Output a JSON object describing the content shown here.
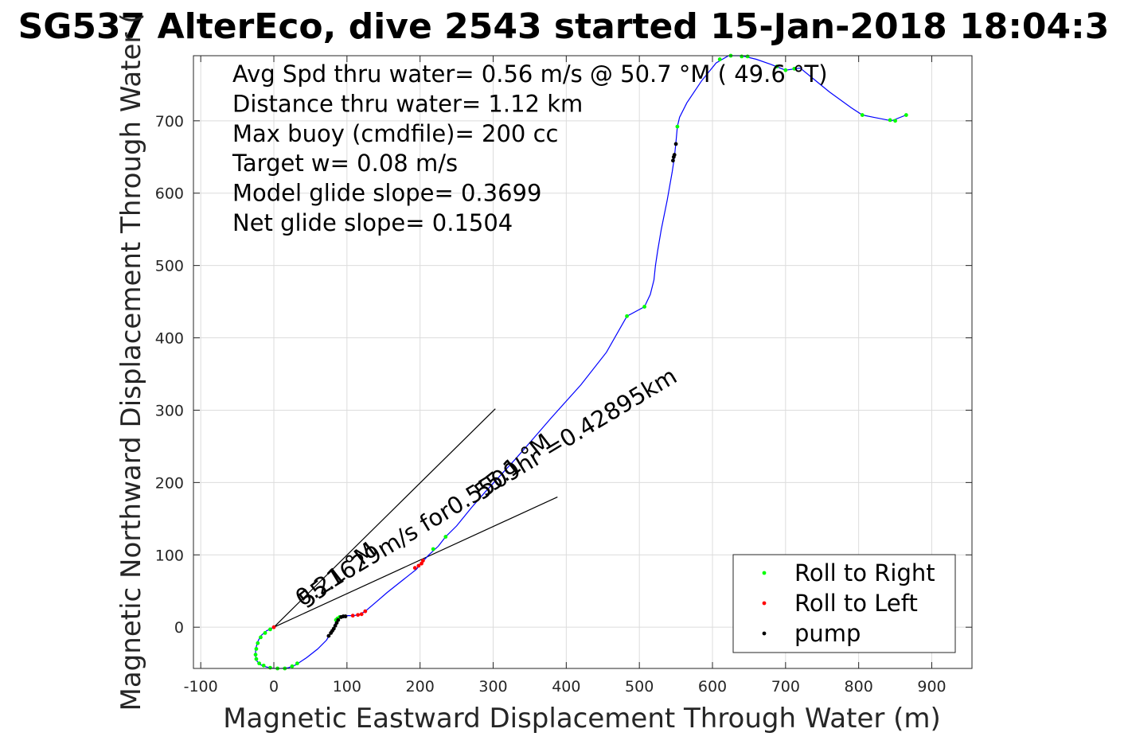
{
  "chart_data": {
    "type": "scatter",
    "title": "SG537 AlterEco, dive 2543 started 15-Jan-2018 18:04:3",
    "xlabel": "Magnetic Eastward Displacement Through Water (m)",
    "ylabel": "Magnetic Northward Displacement Through Water (",
    "xlim": [
      -110,
      955
    ],
    "ylim": [
      -57,
      790
    ],
    "xticks": [
      -100,
      0,
      100,
      200,
      300,
      400,
      500,
      600,
      700,
      800,
      900
    ],
    "yticks": [
      0,
      100,
      200,
      300,
      400,
      500,
      600,
      700
    ],
    "grid": true,
    "stats": [
      "Avg Spd thru water=  0.56 m/s @  50.7 °M ( 49.6 °T)",
      "Distance thru water=  1.12 km",
      "Max buoy (cmdfile)= 200 cc",
      "Target w= 0.08 m/s",
      "Model glide slope= 0.3699",
      "Net glide slope= 0.1504"
    ],
    "track": {
      "name": "",
      "color": "#0000ff",
      "points": [
        [
          0,
          0
        ],
        [
          -10,
          -5
        ],
        [
          -18,
          -12
        ],
        [
          -22,
          -20
        ],
        [
          -25,
          -30
        ],
        [
          -25,
          -40
        ],
        [
          -23,
          -47
        ],
        [
          -18,
          -52
        ],
        [
          -10,
          -55
        ],
        [
          0,
          -57
        ],
        [
          10,
          -57
        ],
        [
          20,
          -56
        ],
        [
          30,
          -52
        ],
        [
          45,
          -42
        ],
        [
          60,
          -30
        ],
        [
          72,
          -18
        ],
        [
          78,
          -8
        ],
        [
          82,
          0
        ],
        [
          85,
          8
        ],
        [
          88,
          13
        ],
        [
          92,
          15
        ],
        [
          100,
          16
        ],
        [
          110,
          16
        ],
        [
          118,
          18
        ],
        [
          125,
          22
        ],
        [
          140,
          35
        ],
        [
          155,
          48
        ],
        [
          170,
          60
        ],
        [
          185,
          72
        ],
        [
          195,
          80
        ],
        [
          203,
          90
        ],
        [
          212,
          100
        ],
        [
          225,
          112
        ],
        [
          235,
          125
        ],
        [
          250,
          140
        ],
        [
          270,
          165
        ],
        [
          290,
          188
        ],
        [
          310,
          210
        ],
        [
          330,
          232
        ],
        [
          350,
          255
        ],
        [
          380,
          290
        ],
        [
          420,
          335
        ],
        [
          455,
          380
        ],
        [
          483,
          430
        ],
        [
          507,
          443
        ],
        [
          515,
          460
        ],
        [
          520,
          480
        ],
        [
          522,
          500
        ],
        [
          525,
          520
        ],
        [
          530,
          550
        ],
        [
          538,
          590
        ],
        [
          545,
          630
        ],
        [
          548,
          650
        ],
        [
          550,
          670
        ],
        [
          552,
          692
        ],
        [
          555,
          705
        ],
        [
          565,
          725
        ],
        [
          585,
          755
        ],
        [
          605,
          780
        ],
        [
          622,
          790
        ],
        [
          640,
          790
        ],
        [
          660,
          785
        ],
        [
          680,
          778
        ],
        [
          700,
          770
        ],
        [
          720,
          773
        ],
        [
          760,
          740
        ],
        [
          790,
          718
        ],
        [
          805,
          708
        ],
        [
          820,
          705
        ],
        [
          845,
          700
        ],
        [
          865,
          708
        ]
      ]
    },
    "series": [
      {
        "name": "Roll to Right",
        "color": "#00ff00",
        "marker": "dot",
        "points": [
          [
            -5,
            -3
          ],
          [
            -12,
            -8
          ],
          [
            -18,
            -14
          ],
          [
            -22,
            -22
          ],
          [
            -24,
            -30
          ],
          [
            -25,
            -38
          ],
          [
            -24,
            -44
          ],
          [
            -20,
            -50
          ],
          [
            -14,
            -53
          ],
          [
            -5,
            -56
          ],
          [
            5,
            -57
          ],
          [
            15,
            -57
          ],
          [
            25,
            -54
          ],
          [
            32,
            -50
          ],
          [
            85,
            10
          ],
          [
            87,
            12
          ],
          [
            90,
            14
          ],
          [
            218,
            108
          ],
          [
            235,
            125
          ],
          [
            483,
            430
          ],
          [
            507,
            443
          ],
          [
            552,
            692
          ],
          [
            610,
            785
          ],
          [
            625,
            790
          ],
          [
            640,
            789
          ],
          [
            648,
            789
          ],
          [
            688,
            775
          ],
          [
            700,
            770
          ],
          [
            712,
            772
          ],
          [
            805,
            708
          ],
          [
            843,
            701
          ],
          [
            850,
            700
          ],
          [
            865,
            708
          ]
        ]
      },
      {
        "name": "Roll to Left",
        "color": "#ff0000",
        "marker": "dot",
        "points": [
          [
            0,
            0
          ],
          [
            108,
            16
          ],
          [
            115,
            17
          ],
          [
            120,
            18
          ],
          [
            125,
            22
          ],
          [
            193,
            82
          ],
          [
            198,
            85
          ],
          [
            202,
            88
          ],
          [
            204,
            92
          ]
        ]
      },
      {
        "name": "pump",
        "color": "#000000",
        "marker": "dot",
        "points": [
          [
            75,
            -12
          ],
          [
            78,
            -8
          ],
          [
            80,
            -5
          ],
          [
            82,
            -2
          ],
          [
            84,
            2
          ],
          [
            86,
            6
          ],
          [
            88,
            10
          ],
          [
            92,
            14
          ],
          [
            95,
            15
          ],
          [
            98,
            15
          ],
          [
            546,
            645
          ],
          [
            547,
            650
          ],
          [
            548,
            653
          ],
          [
            550,
            668
          ]
        ]
      }
    ],
    "heading_lines": {
      "color": "#000000",
      "lines": [
        [
          [
            0,
            0
          ],
          [
            303,
            302
          ]
        ],
        [
          [
            0,
            0
          ],
          [
            388,
            180
          ]
        ]
      ]
    },
    "annotations": [
      {
        "text": "55.1 °M",
        "x": 45,
        "y": 25,
        "angle_deg": -38
      },
      {
        "text": "55.1 °M",
        "x": 285,
        "y": 175,
        "angle_deg": -38
      },
      {
        "text": "0.21629m/s for0.5509hr =0.42895km",
        "x": 38,
        "y": 28,
        "angle_deg": -31
      }
    ],
    "legend": {
      "placement": "bottom-right",
      "entries": [
        {
          "label": "Roll to Right",
          "color": "#00ff00"
        },
        {
          "label": "Roll to Left",
          "color": "#ff0000"
        },
        {
          "label": "pump",
          "color": "#000000"
        }
      ]
    }
  }
}
